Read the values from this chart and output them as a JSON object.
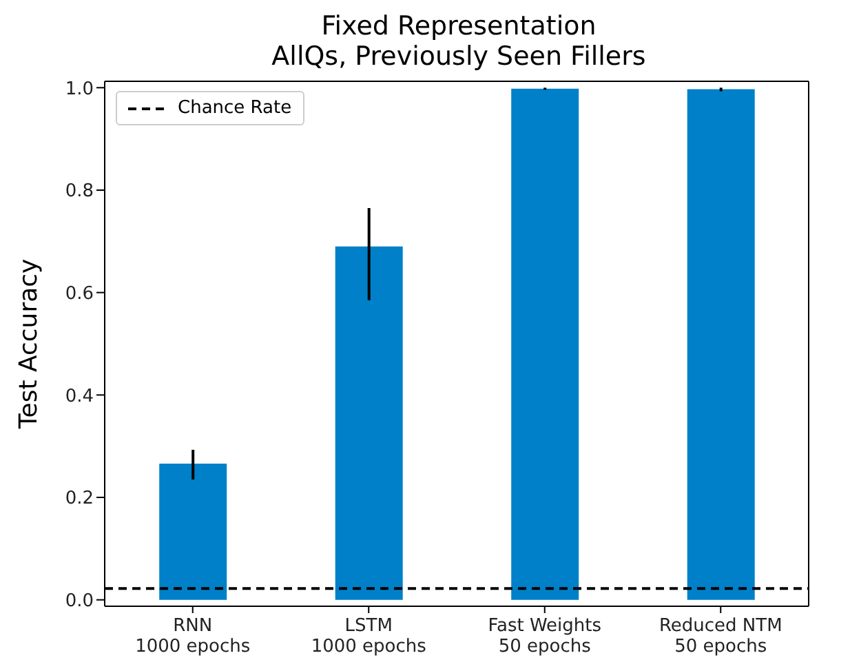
{
  "chart_data": {
    "type": "bar",
    "title": "Fixed Representation\nAllQs, Previously Seen Fillers",
    "ylabel": "Test Accuracy",
    "categories": [
      "RNN\n1000 epochs",
      "LSTM\n1000 epochs",
      "Fast Weights\n50 epochs",
      "Reduced NTM\n50 epochs"
    ],
    "values": [
      0.266,
      0.69,
      0.998,
      0.997
    ],
    "color": "#0080c8",
    "errors": [
      [
        0.235,
        0.293
      ],
      [
        0.585,
        0.765
      ],
      [
        0.996,
        1.0
      ],
      [
        0.993,
        1.0
      ]
    ],
    "ylim": [
      -0.0125,
      1.0125
    ],
    "yticks": [
      {
        "value": 0,
        "label": "0.0"
      },
      0.2,
      0.4,
      0.6,
      0.8,
      {
        "value": 1,
        "label": "1.0"
      }
    ],
    "ref_lines": [
      {
        "axis": "y",
        "value": 0.022,
        "label": "Chance Rate",
        "color": "#000000",
        "line_style": "dashed"
      }
    ],
    "legend": "top left",
    "grid": false
  }
}
